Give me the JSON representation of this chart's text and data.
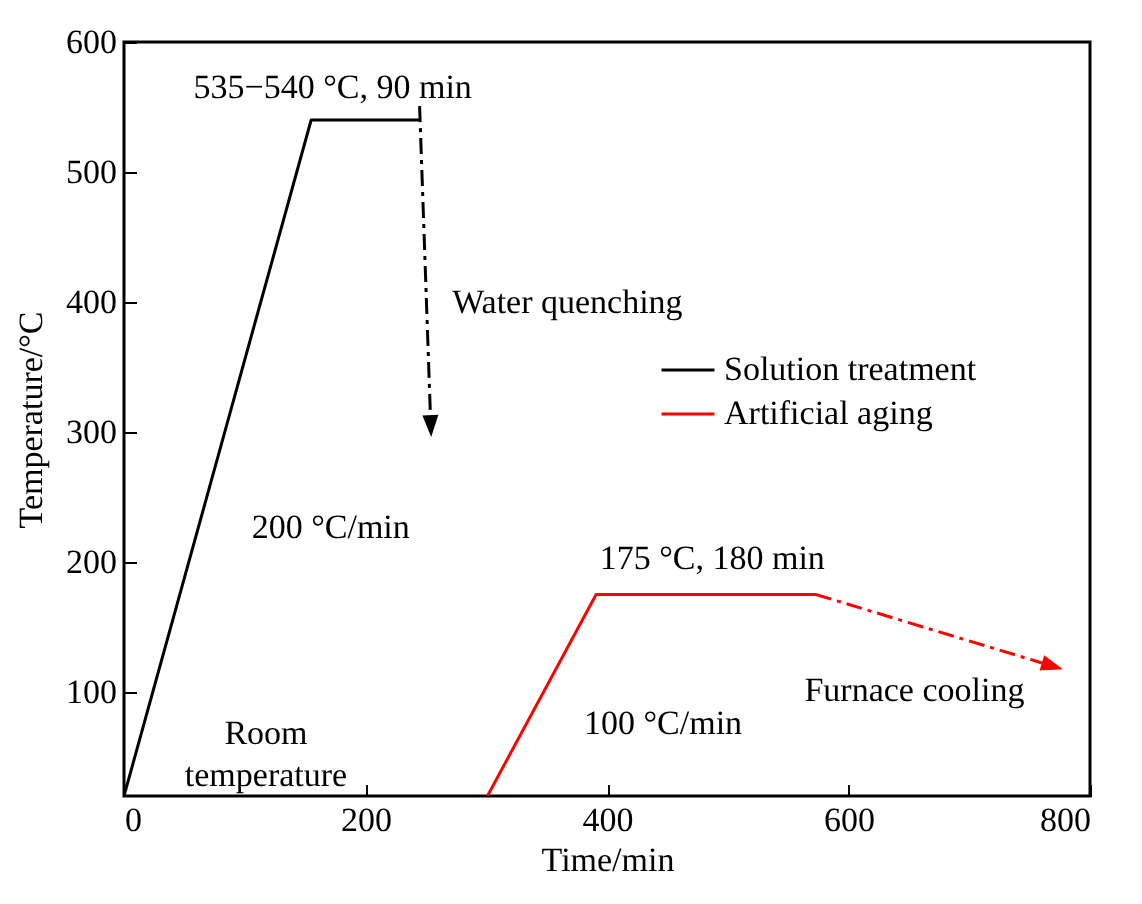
{
  "chart_data": {
    "type": "line",
    "xlabel": "Time/min",
    "ylabel": "Temperature/°C",
    "xlim": [
      0,
      800
    ],
    "ylim": [
      20,
      600
    ],
    "xticks": [
      0,
      200,
      400,
      600,
      800
    ],
    "yticks": [
      100,
      200,
      300,
      400,
      500,
      600
    ],
    "grid": false,
    "legend": "right",
    "marker": "none",
    "line_style": "solid",
    "series": [
      {
        "name": "Solution treatment",
        "color": "#000000",
        "x": [
          0,
          155,
          245
        ],
        "values": [
          20,
          540,
          540
        ]
      },
      {
        "name": "Artificial aging",
        "color": "#ff0000",
        "x": [
          301,
          391,
          573
        ],
        "values": [
          20,
          175,
          175
        ]
      }
    ],
    "annotations": [
      "535−540 °C, 90 min",
      "Water quenching",
      "200 °C/min",
      "Room\ntemperature",
      "175 °C, 180 min",
      "100 °C/min",
      {
        "text": "Furnace cooling",
        "x": 573,
        "y": 175
      }
    ]
  }
}
